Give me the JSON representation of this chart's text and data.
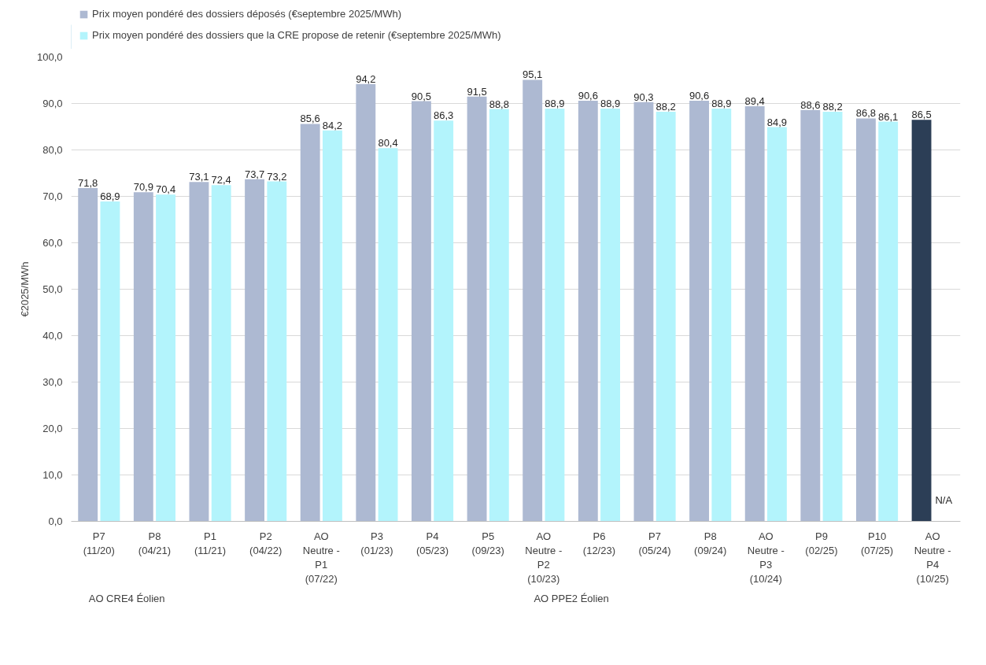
{
  "chart_data": {
    "type": "bar",
    "categories": [
      "P7\n(11/20)",
      "P8\n(04/21)",
      "P1\n(11/21)",
      "P2\n(04/22)",
      "AO\nNeutre -\nP1\n(07/22)",
      "P3\n(01/23)",
      "P4\n(05/23)",
      "P5\n(09/23)",
      "AO\nNeutre -\nP2\n(10/23)",
      "P6\n(12/23)",
      "P7\n(05/24)",
      "P8\n(09/24)",
      "AO\nNeutre -\nP3\n(10/24)",
      "P9\n(02/25)",
      "P10\n(07/25)",
      "AO\nNeutre -\nP4\n(10/25)"
    ],
    "series": [
      {
        "name": "Prix moyen pondéré des dossiers déposés (€septembre 2025/MWh)",
        "color": "#adb9d2",
        "colors": [
          "#adb9d2",
          "#adb9d2",
          "#adb9d2",
          "#adb9d2",
          "#adb9d2",
          "#adb9d2",
          "#adb9d2",
          "#adb9d2",
          "#adb9d2",
          "#adb9d2",
          "#adb9d2",
          "#adb9d2",
          "#adb9d2",
          "#adb9d2",
          "#adb9d2",
          "#2c3e56"
        ],
        "values": [
          71.8,
          70.9,
          73.1,
          73.7,
          85.6,
          94.2,
          90.5,
          91.5,
          95.1,
          90.6,
          90.3,
          90.6,
          89.4,
          88.6,
          86.8,
          86.5
        ],
        "value_labels": [
          "71,8",
          "70,9",
          "73,1",
          "73,7",
          "85,6",
          "94,2",
          "90,5",
          "91,5",
          "95,1",
          "90,6",
          "90,3",
          "90,6",
          "89,4",
          "88,6",
          "86,8",
          "86,5"
        ]
      },
      {
        "name": "Prix moyen pondéré des dossiers que la CRE propose de retenir (€septembre 2025/MWh)",
        "color": "#b3f4fc",
        "values": [
          68.9,
          70.4,
          72.4,
          73.2,
          84.2,
          80.4,
          86.3,
          88.8,
          88.9,
          88.9,
          88.2,
          88.9,
          84.9,
          88.2,
          86.1,
          null
        ],
        "value_labels": [
          "68,9",
          "70,4",
          "72,4",
          "73,2",
          "84,2",
          "80,4",
          "86,3",
          "88,8",
          "88,9",
          "88,9",
          "88,2",
          "88,9",
          "84,9",
          "88,2",
          "86,1",
          "N/A"
        ]
      }
    ],
    "ylabel": "€2025/MWh",
    "ylim": [
      0,
      100
    ],
    "yticks": [
      {
        "value": 0,
        "label": "0,0"
      },
      {
        "value": 10,
        "label": "10,0"
      },
      {
        "value": 20,
        "label": "20,0"
      },
      {
        "value": 30,
        "label": "30,0"
      },
      {
        "value": 40,
        "label": "40,0"
      },
      {
        "value": 50,
        "label": "50,0"
      },
      {
        "value": 60,
        "label": "60,0"
      },
      {
        "value": 70,
        "label": "70,0"
      },
      {
        "value": 80,
        "label": "80,0"
      },
      {
        "value": 90,
        "label": "90,0"
      },
      {
        "value": 100,
        "label": "100,0"
      }
    ],
    "annotations": [
      "AO CRE4 Éolien",
      "AO PPE2 Éolien"
    ],
    "grid": "y",
    "legend": "top left"
  }
}
